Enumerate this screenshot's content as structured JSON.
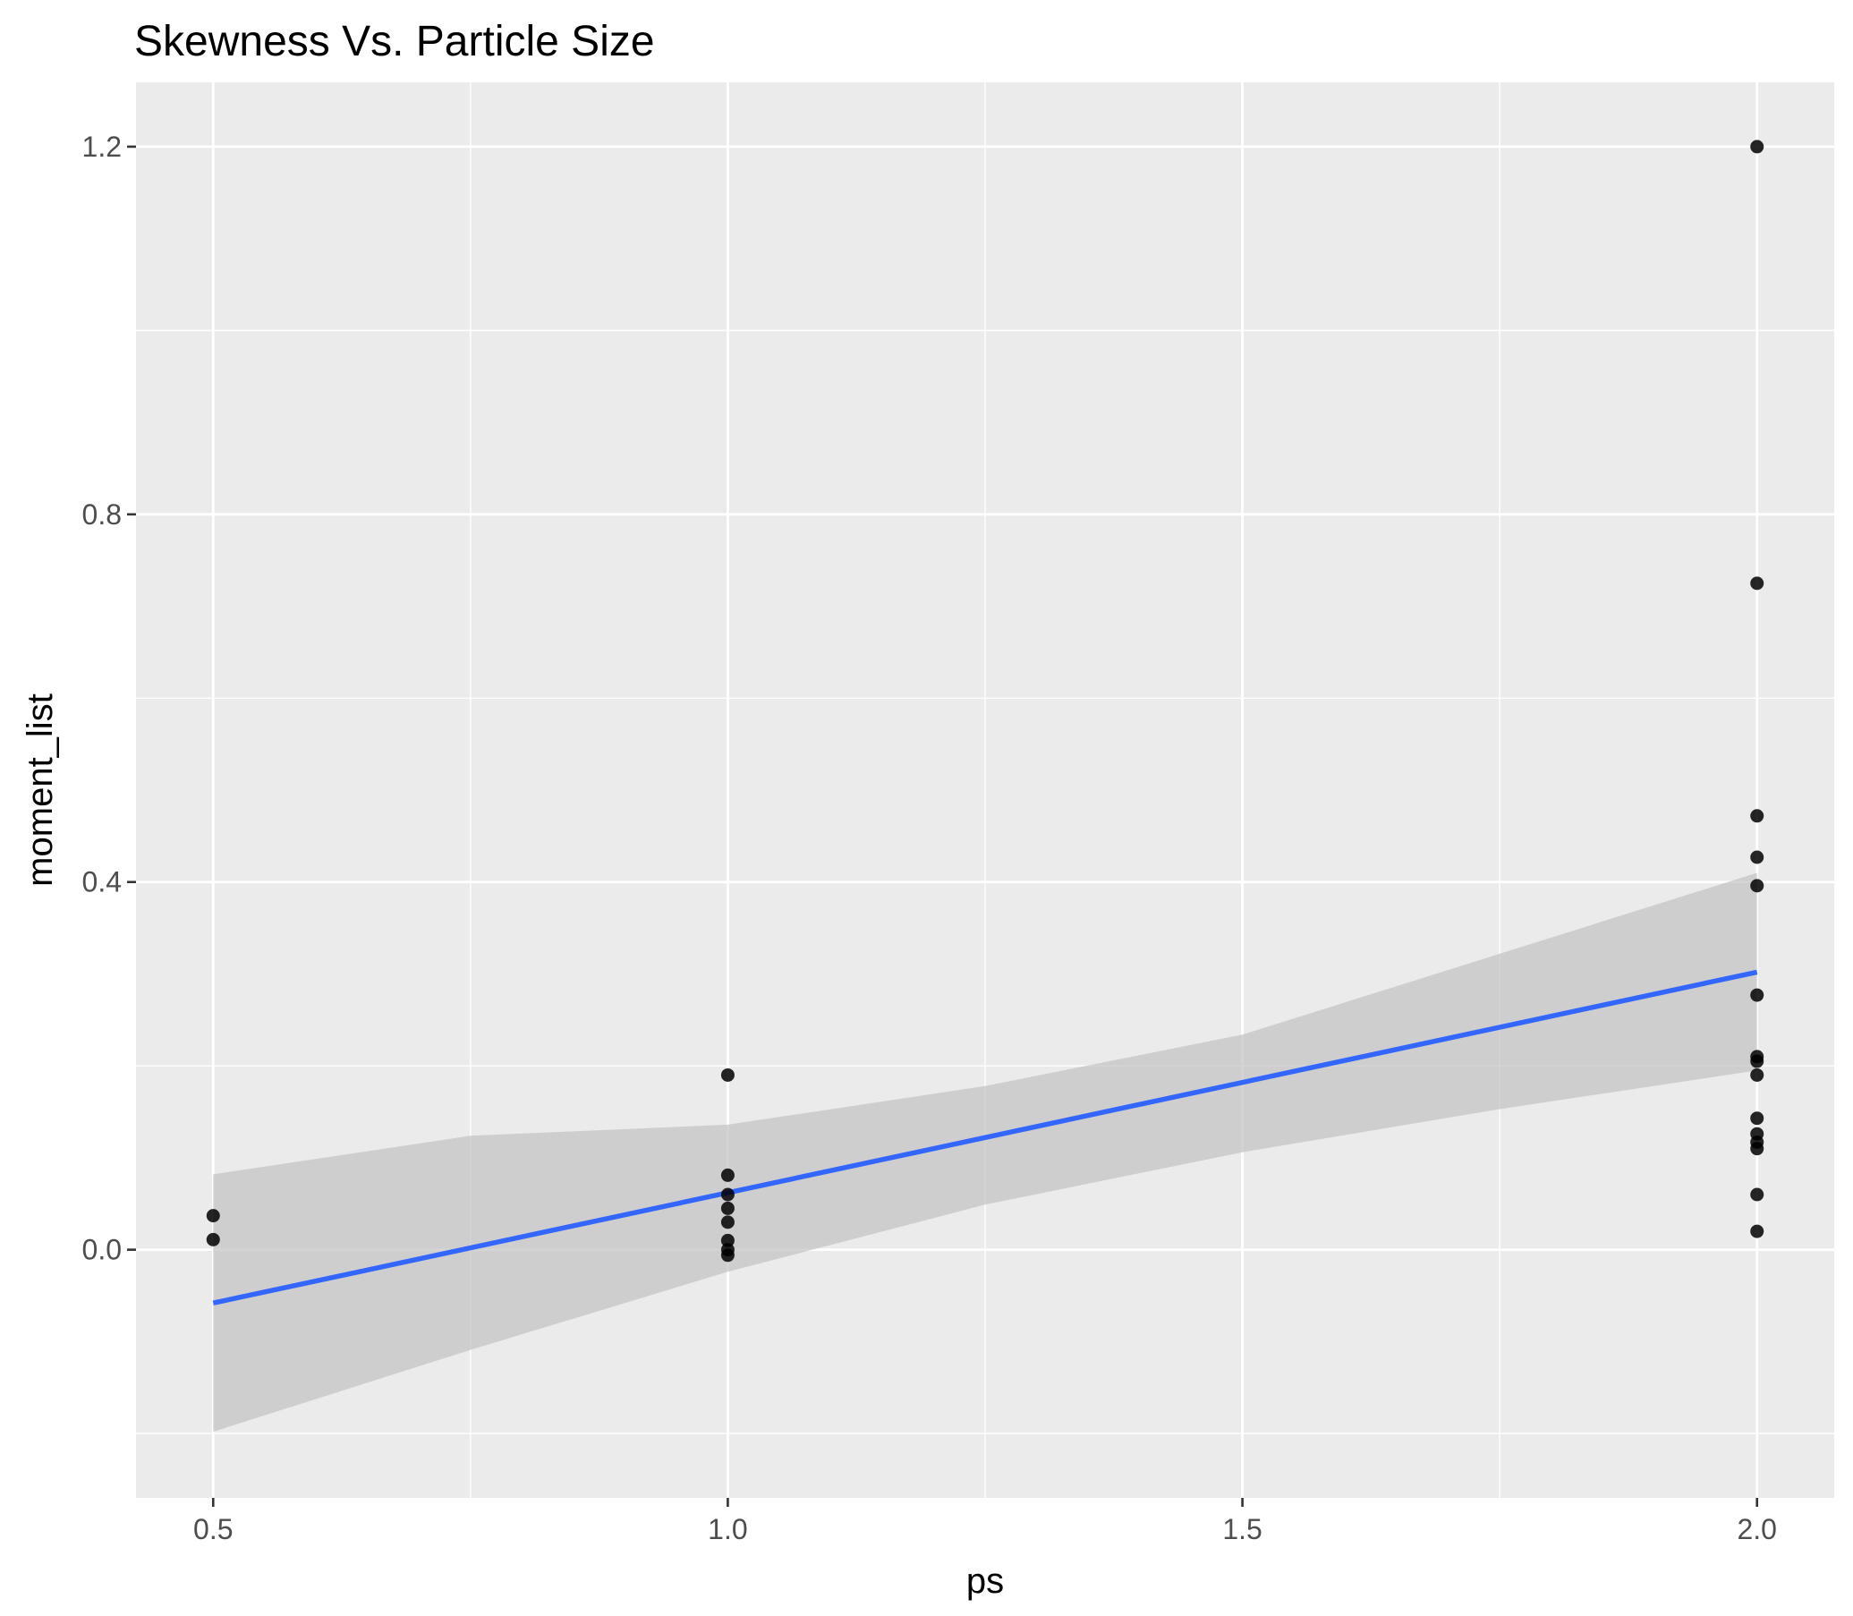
{
  "chart_data": {
    "type": "scatter",
    "title": "Skewness Vs. Particle Size",
    "xlabel": "ps",
    "ylabel": "moment_list",
    "xlim": [
      0.425,
      2.075
    ],
    "ylim": [
      -0.27,
      1.27
    ],
    "xticks": [
      0.5,
      1.0,
      1.5,
      2.0
    ],
    "xtick_labels": [
      "0.5",
      "1.0",
      "1.5",
      "2.0"
    ],
    "yticks": [
      0.0,
      0.4,
      0.8,
      1.2
    ],
    "ytick_labels": [
      "0.0",
      "0.4",
      "0.8",
      "1.2"
    ],
    "grid": true,
    "legend": "none",
    "colors": {
      "panel": "#ebebeb",
      "grid": "#ffffff",
      "points": "#000000",
      "smooth_line": "#3366ff",
      "confidence_band": "#bfbfbf"
    },
    "series": [
      {
        "x": [
          0.5,
          0.5,
          1.0,
          1.0,
          1.0,
          1.0,
          1.0,
          1.0,
          1.0,
          1.0,
          2.0,
          2.0,
          2.0,
          2.0,
          2.0,
          2.0,
          2.0,
          2.0,
          2.0,
          2.0,
          2.0,
          2.0,
          2.0,
          2.0,
          2.0
        ],
        "y": [
          0.037,
          0.011,
          0.19,
          0.081,
          0.06,
          0.045,
          0.03,
          0.01,
          0.0,
          -0.006,
          1.2,
          0.725,
          0.472,
          0.427,
          0.396,
          0.277,
          0.21,
          0.205,
          0.19,
          0.143,
          0.126,
          0.117,
          0.11,
          0.06,
          0.02
        ]
      }
    ],
    "smooth": {
      "method": "lm",
      "x": [
        0.5,
        2.0
      ],
      "y": [
        -0.058,
        0.302
      ],
      "band_x": [
        0.5,
        0.75,
        1.0,
        1.25,
        1.5,
        1.75,
        2.0
      ],
      "band_lower": [
        -0.198,
        -0.109,
        -0.024,
        0.049,
        0.106,
        0.153,
        0.195
      ],
      "band_upper": [
        0.082,
        0.124,
        0.136,
        0.178,
        0.234,
        0.322,
        0.41
      ]
    }
  }
}
